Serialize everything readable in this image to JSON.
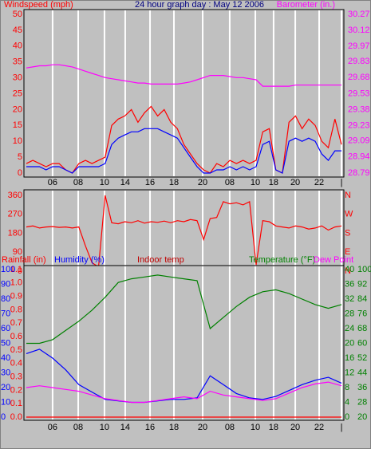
{
  "chart_data": [
    {
      "type": "line",
      "title": "24 hour graph day : May 12 2006",
      "labels": [
        {
          "text": "Windspeed (mph)",
          "color": "#ff0000"
        },
        {
          "text": "Barometer (in.)",
          "color": "#ff00ff"
        }
      ],
      "xlim": [
        0,
        24
      ],
      "xticks": [
        {
          "value": 2,
          "label": "06"
        },
        {
          "value": 3.95,
          "label": "08"
        },
        {
          "value": 5.95,
          "label": "10"
        },
        {
          "value": 7.53,
          "label": "14"
        },
        {
          "value": 9.42,
          "label": "16"
        },
        {
          "value": 11.24,
          "label": "18"
        },
        {
          "value": 13.43,
          "label": "20"
        },
        {
          "value": 15.49,
          "label": "08"
        },
        {
          "value": 17.44,
          "label": "10"
        },
        {
          "value": 18.83,
          "label": "18"
        },
        {
          "value": 20.48,
          "label": "20"
        },
        {
          "value": 22.3,
          "label": "22"
        },
        {
          "value": 24,
          "label": "|"
        }
      ],
      "axes": [
        {
          "side": "left",
          "color": "#ff0000",
          "lim": [
            0,
            50
          ],
          "ticks": [
            0,
            5,
            10,
            15,
            20,
            25,
            30,
            35,
            40,
            45,
            50
          ]
        },
        {
          "side": "right",
          "color": "#ff00ff",
          "lim": [
            28.79,
            30.27
          ],
          "ticks": [
            28.79,
            28.94,
            29.09,
            29.23,
            29.38,
            29.53,
            29.68,
            29.83,
            29.97,
            30.12,
            30.27
          ]
        }
      ],
      "x": [
        0,
        0.5,
        1,
        1.5,
        2,
        2.5,
        3,
        3.5,
        4,
        4.5,
        5,
        5.5,
        6,
        6.5,
        7,
        7.5,
        8,
        8.5,
        9,
        9.5,
        10,
        10.5,
        11,
        11.5,
        12,
        12.5,
        13,
        13.5,
        14,
        14.5,
        15,
        15.5,
        16,
        16.5,
        17,
        17.5,
        18,
        18.5,
        19,
        19.5,
        20,
        20.5,
        21,
        21.5,
        22,
        22.5,
        23,
        23.5,
        24
      ],
      "series": [
        {
          "axis": 1,
          "color": "#ff00ff",
          "values": [
            29.77,
            29.78,
            29.79,
            29.79,
            29.8,
            29.8,
            29.79,
            29.78,
            29.76,
            29.74,
            29.72,
            29.7,
            29.68,
            29.67,
            29.66,
            29.65,
            29.64,
            29.63,
            29.63,
            29.62,
            29.62,
            29.62,
            29.62,
            29.62,
            29.63,
            29.64,
            29.66,
            29.68,
            29.7,
            29.7,
            29.7,
            29.69,
            29.68,
            29.68,
            29.67,
            29.66,
            29.6,
            29.6,
            29.6,
            29.6,
            29.6,
            29.61,
            29.61,
            29.61,
            29.61,
            29.61,
            29.61,
            29.61,
            29.61
          ]
        },
        {
          "axis": 0,
          "color": "#ff0000",
          "values": [
            3,
            4,
            3,
            2,
            3,
            3,
            1,
            0,
            3,
            4,
            3,
            4,
            5,
            15,
            17,
            18,
            20,
            16,
            19,
            21,
            18,
            20,
            16,
            14,
            9,
            6,
            3,
            1,
            0,
            3,
            2,
            4,
            3,
            4,
            3,
            4,
            13,
            14,
            1,
            0,
            16,
            18,
            14,
            17,
            15,
            10,
            8,
            17,
            9
          ]
        },
        {
          "axis": 0,
          "color": "#0000ff",
          "values": [
            2,
            2,
            2,
            1,
            2,
            2,
            1,
            0,
            2,
            2,
            2,
            2,
            3,
            9,
            11,
            12,
            13,
            13,
            14,
            14,
            14,
            13,
            12,
            11,
            8,
            5,
            2,
            0,
            0,
            1,
            1,
            2,
            1,
            2,
            1,
            2,
            9,
            10,
            1,
            0,
            10,
            11,
            10,
            11,
            10,
            6,
            4,
            7,
            7
          ]
        }
      ]
    },
    {
      "type": "line",
      "xlim": [
        0,
        24
      ],
      "xticks": [
        2,
        3.95,
        5.95,
        7.53,
        9.42,
        11.24,
        13.43,
        15.49,
        17.44,
        18.83,
        20.48,
        22.3,
        24
      ],
      "axes": [
        {
          "side": "left",
          "color": "#ff0000",
          "lim": [
            0,
            360
          ],
          "ticks": [
            0,
            90,
            180,
            270,
            360
          ]
        },
        {
          "side": "right",
          "color": "#ff0000",
          "lim": [
            0,
            360
          ],
          "ticks": [
            {
              "value": 0,
              "label": "N"
            },
            {
              "value": 90,
              "label": "E"
            },
            {
              "value": 180,
              "label": "S"
            },
            {
              "value": 270,
              "label": "W"
            },
            {
              "value": 360,
              "label": "N"
            }
          ]
        }
      ],
      "x": [
        0,
        0.5,
        1,
        1.5,
        2,
        2.5,
        3,
        3.5,
        4,
        4.5,
        5,
        5.5,
        6,
        6.5,
        7,
        7.5,
        8,
        8.5,
        9,
        9.5,
        10,
        10.5,
        11,
        11.5,
        12,
        12.5,
        13,
        13.5,
        14,
        14.5,
        15,
        15.5,
        16,
        16.5,
        17,
        17.5,
        18,
        18.5,
        19,
        19.5,
        20,
        20.5,
        21,
        21.5,
        22,
        22.5,
        23,
        23.5,
        24
      ],
      "series": [
        {
          "axis": 0,
          "color": "#ff0000",
          "values": [
            210,
            215,
            205,
            210,
            212,
            208,
            210,
            205,
            210,
            120,
            40,
            20,
            360,
            230,
            225,
            235,
            230,
            240,
            228,
            235,
            232,
            238,
            230,
            240,
            235,
            245,
            240,
            150,
            250,
            255,
            330,
            320,
            325,
            315,
            330,
            30,
            240,
            235,
            215,
            210,
            205,
            215,
            210,
            200,
            205,
            215,
            195,
            210,
            215
          ]
        }
      ]
    },
    {
      "type": "line",
      "labels": [
        {
          "text": "Rainfall (in)",
          "color": "#ff0000"
        },
        {
          "text": "Humidity (%)",
          "color": "#0000ff"
        },
        {
          "text": "Indoor temp",
          "color": "#c00000"
        },
        {
          "text": "Temperature (°F)",
          "color": "#008000"
        },
        {
          "text": "Dew Point",
          "color": "#ff00ff"
        }
      ],
      "xlim": [
        0,
        24
      ],
      "xticks": [
        {
          "value": 2,
          "label": "06"
        },
        {
          "value": 3.95,
          "label": "08"
        },
        {
          "value": 5.95,
          "label": "10"
        },
        {
          "value": 7.53,
          "label": "14"
        },
        {
          "value": 9.42,
          "label": "16"
        },
        {
          "value": 11.24,
          "label": "18"
        },
        {
          "value": 13.43,
          "label": "20"
        },
        {
          "value": 15.49,
          "label": "08"
        },
        {
          "value": 17.44,
          "label": "10"
        },
        {
          "value": 18.83,
          "label": "18"
        },
        {
          "value": 20.48,
          "label": "20"
        },
        {
          "value": 22.3,
          "label": "22"
        },
        {
          "value": 24,
          "label": "|"
        }
      ],
      "axes": [
        {
          "side": "left",
          "color": "#ff0000",
          "lim": [
            0,
            1.1
          ],
          "ticks": [
            {
              "value": 0,
              "label": "0.0"
            },
            0.1,
            0.2,
            0.3,
            0.4,
            0.5,
            0.6,
            0.7,
            0.8,
            0.9,
            {
              "value": 1,
              "label": "1.0"
            },
            1.1
          ]
        },
        {
          "side": "left",
          "color": "#0000ff",
          "lim": [
            0,
            100
          ],
          "ticks": [
            0,
            10,
            20,
            30,
            40,
            50,
            60,
            70,
            80,
            90,
            100
          ]
        },
        {
          "side": "right",
          "color": "#008000",
          "lim": [
            0,
            40
          ],
          "ticks": [
            0,
            4,
            8,
            12,
            16,
            20,
            24,
            28,
            32,
            36,
            40
          ]
        },
        {
          "side": "right",
          "color": "#008000",
          "lim": [
            20,
            100
          ],
          "ticks": [
            20,
            28,
            36,
            44,
            52,
            60,
            68,
            76,
            84,
            92,
            100
          ]
        }
      ],
      "x": [
        0,
        1,
        2,
        3,
        4,
        5,
        6,
        7,
        8,
        9,
        10,
        11,
        12,
        13,
        14,
        15,
        16,
        17,
        18,
        19,
        20,
        21,
        22,
        23,
        24
      ],
      "series": [
        {
          "axis": 0,
          "color": "#ff0000",
          "values": [
            0,
            0,
            0,
            0,
            0,
            0,
            0,
            0,
            0,
            0,
            0,
            0,
            0,
            0,
            0,
            0,
            0,
            0,
            0,
            0,
            0,
            0,
            0,
            0,
            0
          ]
        },
        {
          "axis": 3,
          "color": "#008000",
          "values": [
            60,
            60,
            62,
            67,
            72,
            78,
            85,
            93,
            95,
            96,
            97,
            96,
            95,
            94,
            68,
            74,
            80,
            85,
            88,
            89,
            87,
            84,
            81,
            79,
            81
          ]
        },
        {
          "axis": 1,
          "color": "#0000ff",
          "values": [
            43,
            46,
            40,
            32,
            22,
            17,
            12,
            11,
            10,
            10,
            11,
            12,
            12,
            13,
            28,
            22,
            16,
            13,
            12,
            14,
            18,
            22,
            25,
            27,
            23
          ]
        },
        {
          "axis": 3,
          "color": "#ff00ff",
          "values": [
            36,
            37,
            36,
            35,
            34,
            32,
            30,
            29,
            28,
            28,
            29,
            30,
            31,
            30,
            34,
            32,
            31,
            30,
            29,
            30,
            33,
            36,
            38,
            39,
            37
          ]
        }
      ]
    }
  ]
}
